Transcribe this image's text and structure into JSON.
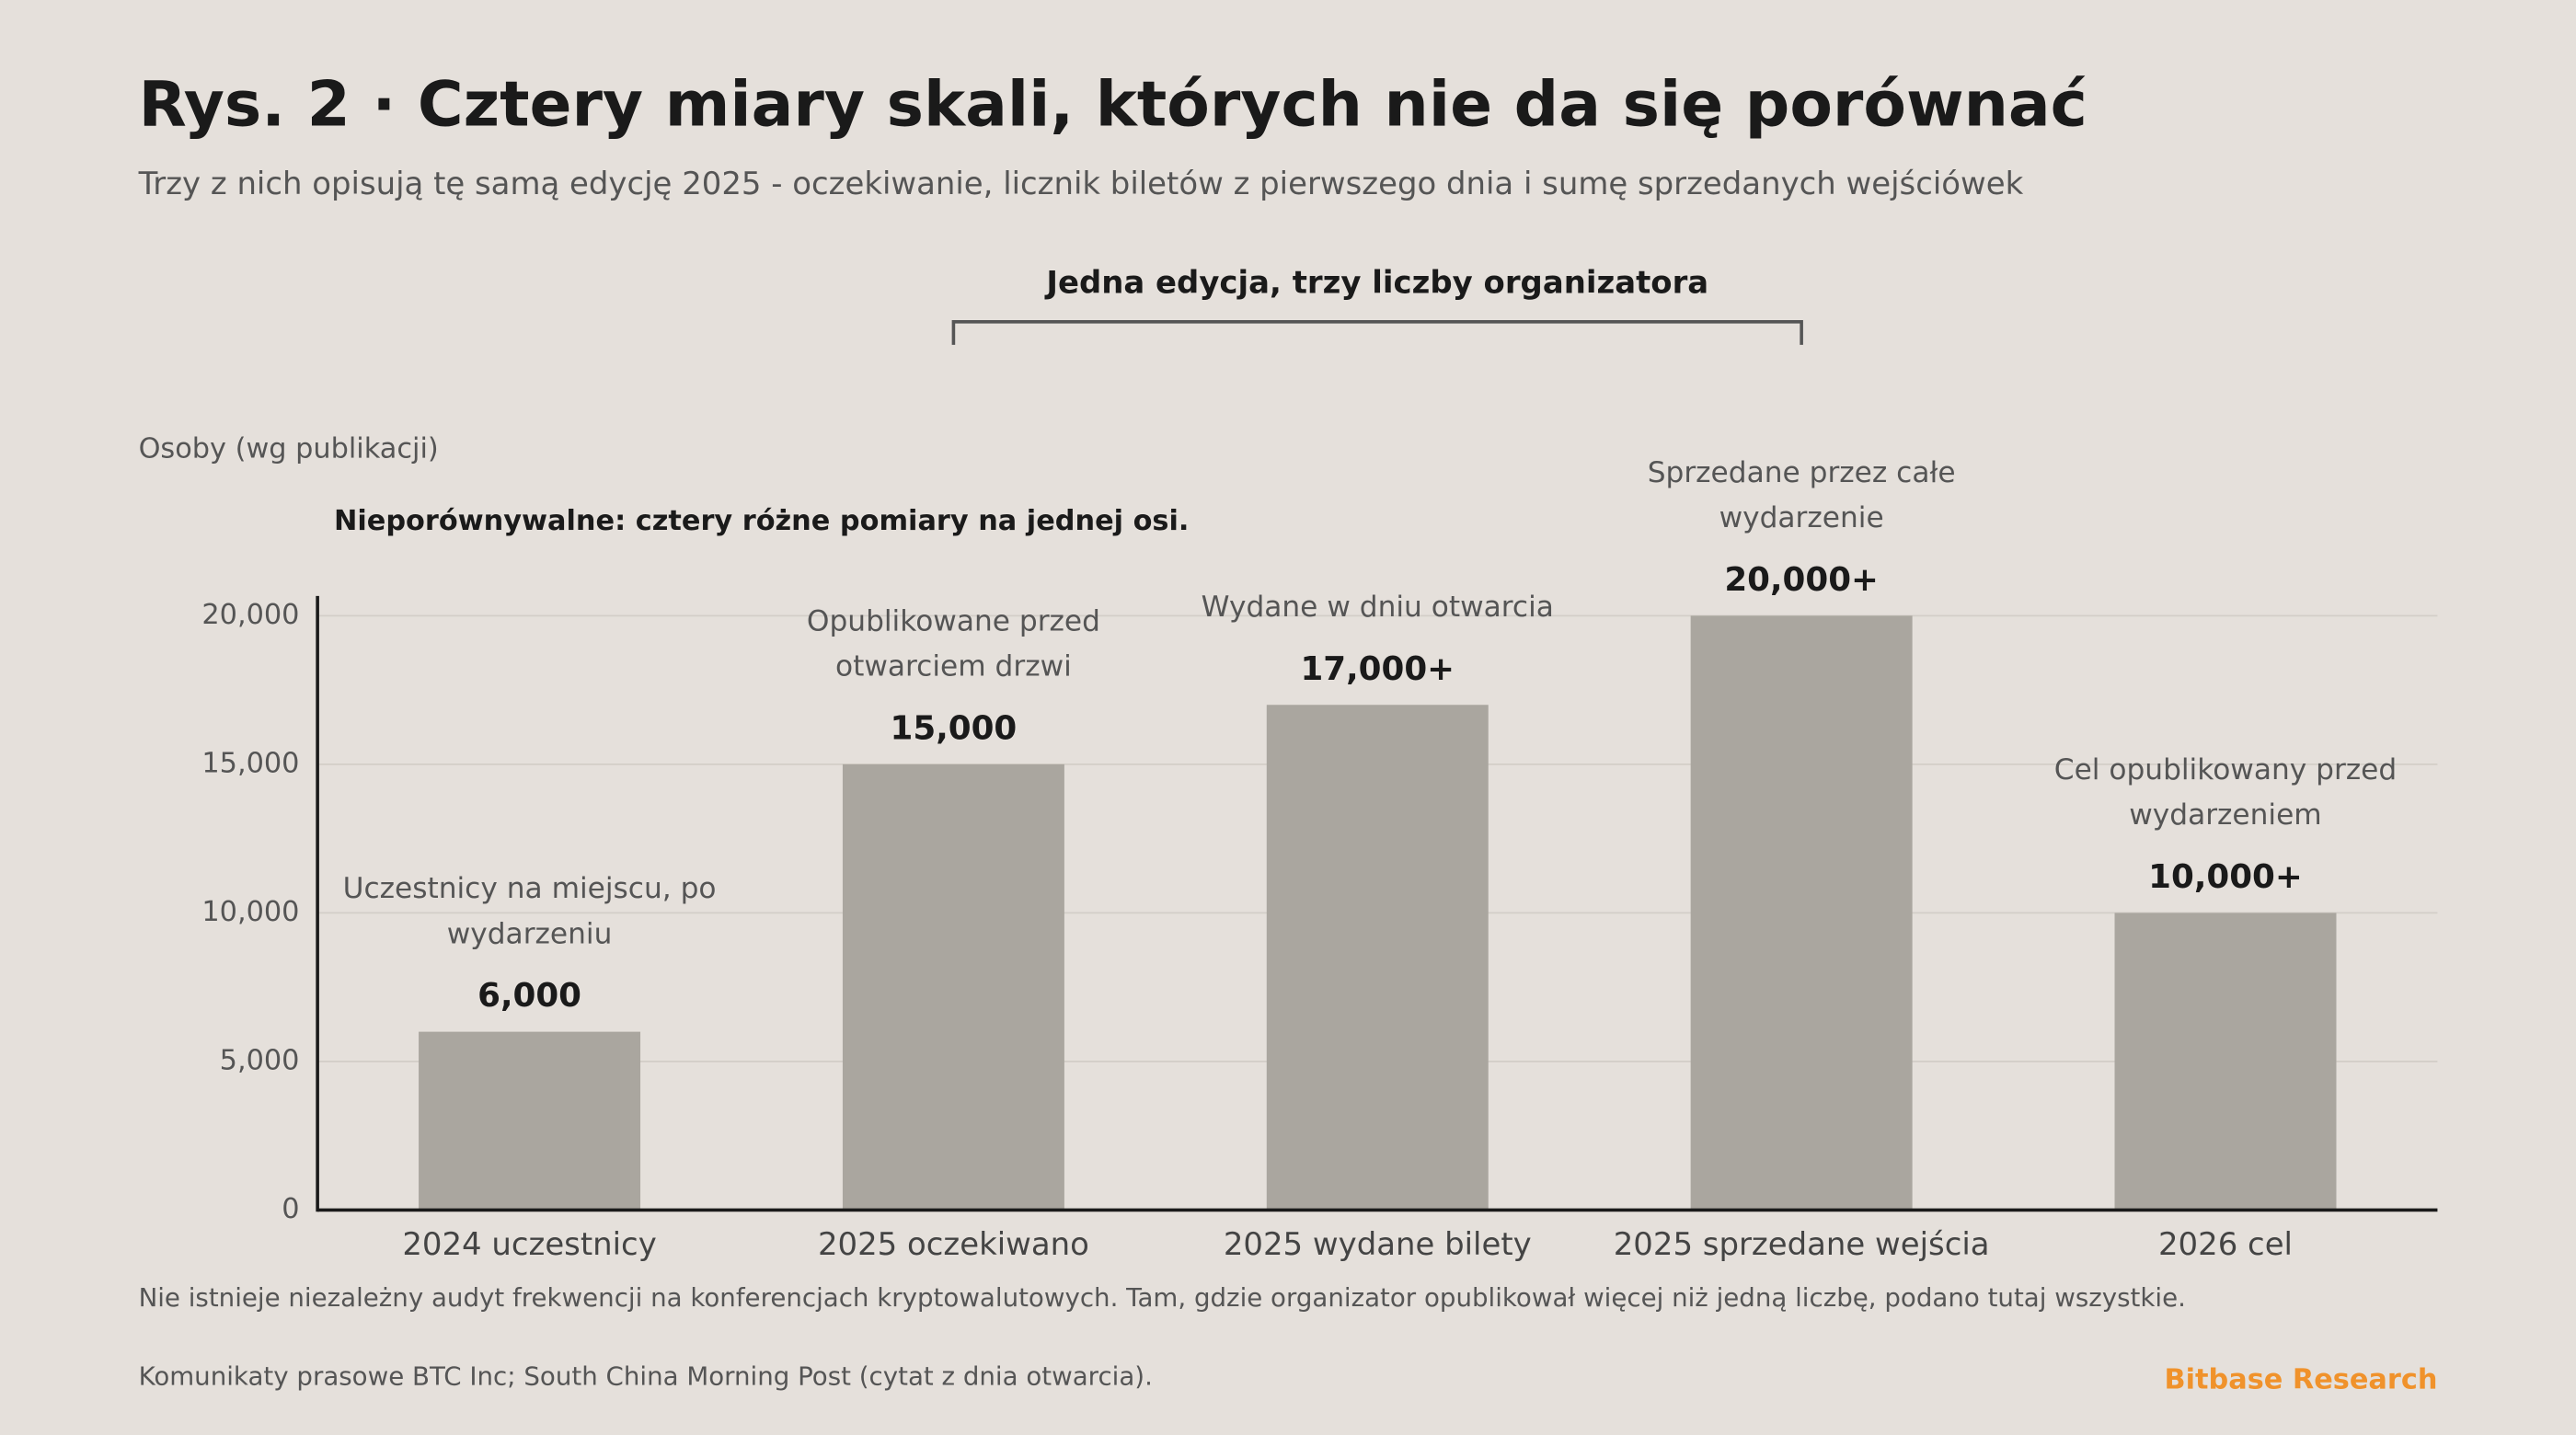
{
  "chart_data": {
    "type": "bar",
    "title": "Rys. 2 · Cztery miary skali, których nie da się porównać",
    "subtitle": "Trzy z nich opisują tę samą edycję 2025 - oczekiwanie, licznik biletów z pierwszego dnia i sumę sprzedanych wejściówek",
    "bracket_label": "Jedna edycja, trzy liczby organizatora",
    "y_label": "Osoby (wg publikacji)",
    "note": "Nieporównywalne: cztery różne pomiary na jednej osi.",
    "categories": [
      "2024 uczestnicy",
      "2025 oczekiwano",
      "2025 wydane bilety",
      "2025 sprzedane wejścia",
      "2026 cel"
    ],
    "values": [
      6000,
      15000,
      17000,
      20000,
      10000
    ],
    "value_labels": [
      "6,000",
      "15,000",
      "17,000+",
      "20,000+",
      "10,000+"
    ],
    "annotations": [
      "Uczestnicy na miejscu, po wydarzeniu",
      "Opublikowane przed otwarciem drzwi",
      "Wydane w dniu otwarcia",
      "Sprzedane przez całe wydarzenie",
      "Cel opublikowany przed wydarzeniem"
    ],
    "color": "#aaa69f",
    "ylim": [
      0,
      20000
    ],
    "yticks": [
      0,
      {
        "value": 5000,
        "label": "5,000"
      },
      {
        "value": 10000,
        "label": "10,000"
      },
      {
        "value": 15000,
        "label": "15,000"
      },
      {
        "value": 20000,
        "label": "20,000"
      }
    ],
    "grid": true,
    "footnote": "Nie istnieje niezależny audyt frekwencji na konferencjach kryptowalutowych. Tam, gdzie organizator opublikował więcej niż jedną liczbę, podano tutaj wszystkie.",
    "source": "Komunikaty prasowe BTC Inc; South China Morning Post (cytat z dnia otwarcia).",
    "brand": "Bitbase Research"
  }
}
